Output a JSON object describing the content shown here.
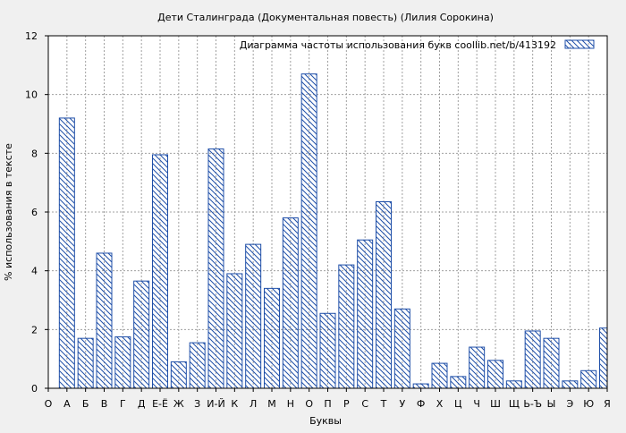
{
  "chart_data": {
    "type": "bar",
    "title": "Дети Сталинграда (Документальная повесть) (Лилия Сорокина)",
    "xlabel": "Буквы",
    "ylabel": "% использования в тексте",
    "legend": {
      "text": "Диаграмма частоты использования букв  coollib.net/b/413192",
      "placement": "top-right"
    },
    "x_start_label": "О",
    "categories": [
      "А",
      "Б",
      "В",
      "Г",
      "Д",
      "Е-Ё",
      "Ж",
      "З",
      "И-Й",
      "К",
      "Л",
      "М",
      "Н",
      "О",
      "П",
      "Р",
      "С",
      "Т",
      "У",
      "Ф",
      "Х",
      "Ц",
      "Ч",
      "Ш",
      "Щ",
      "Ь-Ъ",
      "Ы",
      "Э",
      "Ю",
      "Я"
    ],
    "values": [
      9.2,
      1.7,
      4.6,
      1.75,
      3.65,
      7.95,
      0.9,
      1.55,
      8.15,
      3.9,
      4.9,
      3.4,
      5.8,
      10.7,
      2.55,
      4.2,
      5.05,
      6.35,
      2.7,
      0.15,
      0.85,
      0.4,
      1.4,
      0.95,
      0.25,
      1.95,
      1.7,
      0.25,
      0.6,
      2.05
    ],
    "yticks": [
      0,
      2,
      4,
      6,
      8,
      10,
      12
    ],
    "ylim": [
      0,
      12
    ],
    "grid": true,
    "colors": {
      "bar_stroke": "#1f4fa8",
      "hatch": "#1f4fa8",
      "plot_bg": "#ffffff",
      "page_bg": "#f0f0f0",
      "grid": "#a0a0a0"
    }
  }
}
